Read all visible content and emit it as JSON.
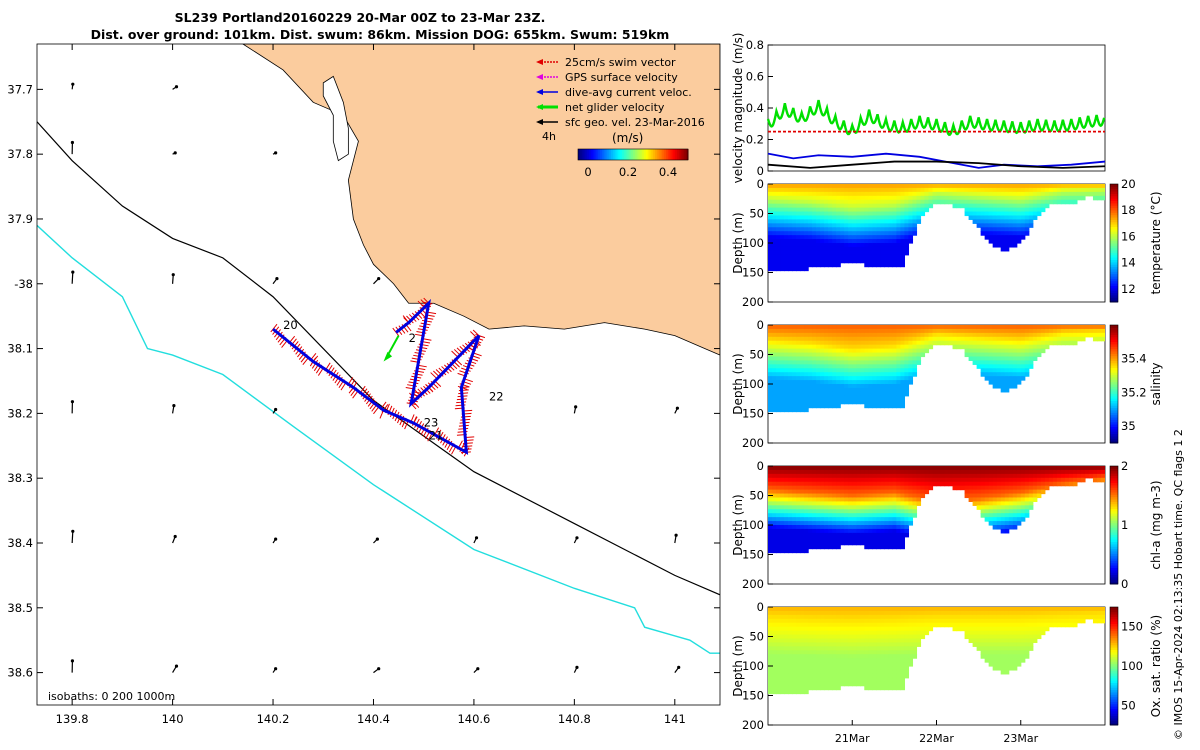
{
  "title_line1": "SL239 Portland20160229 20-Mar 00Z to 23-Mar 23Z.",
  "title_line2": "Dist. over ground: 101km. Dist. swum: 86km. Mission DOG: 655km. Swum: 519km",
  "copyright": "© IMOS 15-Apr-2024 02:13:35 Hobart time. QC flags 1  2",
  "chart_data": [
    {
      "type": "map",
      "xlim": [
        139.73,
        141.09
      ],
      "ylim": [
        38.65,
        37.63
      ],
      "x_ticks": [
        139.8,
        140,
        140.2,
        140.4,
        140.6,
        140.8,
        141
      ],
      "x_tick_labels": [
        "139.8",
        "140",
        "140.2",
        "140.4",
        "140.6",
        "140.8",
        "141"
      ],
      "y_ticks": [
        37.7,
        37.8,
        37.9,
        38.0,
        38.1,
        38.2,
        38.3,
        38.4,
        38.5,
        38.6
      ],
      "y_tick_labels": [
        "37.7",
        "37.8",
        "37.9",
        "-38",
        "38.1",
        "38.2",
        "38.3",
        "38.4",
        "38.5",
        "38.6"
      ],
      "legend": [
        {
          "label": "25cm/s swim vector",
          "color": "#e00000"
        },
        {
          "label": "GPS surface velocity",
          "color": "#e000e0"
        },
        {
          "label": "dive-avg current veloc.",
          "color": "#0000e0"
        },
        {
          "label": "net glider velocity",
          "color": "#00e000"
        },
        {
          "label": "sfc geo. vel. 23-Mar-2016",
          "color": "#000000"
        }
      ],
      "colorbar": {
        "label": "(m/s)",
        "prefix": "4h",
        "ticks": [
          "0",
          "0.2",
          "0.4"
        ],
        "range": [
          -0.05,
          0.5
        ]
      },
      "isobath_label": "isobaths: 0   200  1000m",
      "track_day_labels": [
        {
          "text": "20",
          "lon": 140.22,
          "lat": 38.07
        },
        {
          "text": "2",
          "lon": 140.47,
          "lat": 38.09
        },
        {
          "text": "22",
          "lon": 140.63,
          "lat": 38.18
        },
        {
          "text": "23",
          "lon": 140.5,
          "lat": 38.22
        },
        {
          "text": "21",
          "lon": 140.51,
          "lat": 38.24
        }
      ],
      "glider_track": [
        [
          140.2,
          38.07
        ],
        [
          140.28,
          38.12
        ],
        [
          140.36,
          38.16
        ],
        [
          140.42,
          38.195
        ],
        [
          140.48,
          38.215
        ],
        [
          140.585,
          38.26
        ],
        [
          140.575,
          38.16
        ],
        [
          140.61,
          38.08
        ],
        [
          140.56,
          38.12
        ],
        [
          140.51,
          38.16
        ],
        [
          140.475,
          38.185
        ],
        [
          140.51,
          38.03
        ],
        [
          140.47,
          38.06
        ],
        [
          140.445,
          38.075
        ]
      ],
      "coast_outline": [
        [
          140.14,
          37.63
        ],
        [
          140.22,
          37.67
        ],
        [
          140.28,
          37.72
        ],
        [
          140.34,
          37.74
        ],
        [
          140.37,
          37.78
        ],
        [
          140.35,
          37.84
        ],
        [
          140.36,
          37.9
        ],
        [
          140.38,
          37.94
        ],
        [
          140.4,
          37.97
        ],
        [
          140.44,
          38.0
        ],
        [
          140.47,
          38.03
        ],
        [
          140.52,
          38.03
        ],
        [
          140.58,
          38.05
        ],
        [
          140.63,
          38.07
        ],
        [
          140.7,
          38.065
        ],
        [
          140.78,
          38.07
        ],
        [
          140.86,
          38.06
        ],
        [
          140.94,
          38.07
        ],
        [
          141.0,
          38.08
        ],
        [
          141.06,
          38.1
        ],
        [
          141.09,
          38.11
        ]
      ],
      "island": [
        [
          140.3,
          37.69
        ],
        [
          140.32,
          37.68
        ],
        [
          140.34,
          37.72
        ],
        [
          140.35,
          37.76
        ],
        [
          140.35,
          37.8
        ],
        [
          140.33,
          37.81
        ],
        [
          140.32,
          37.78
        ],
        [
          140.32,
          37.74
        ],
        [
          140.3,
          37.71
        ]
      ],
      "isobath_200": [
        [
          139.73,
          37.75
        ],
        [
          139.8,
          37.81
        ],
        [
          139.9,
          37.88
        ],
        [
          140.0,
          37.93
        ],
        [
          140.1,
          37.96
        ],
        [
          140.2,
          38.02
        ],
        [
          140.4,
          38.18
        ],
        [
          140.6,
          38.29
        ],
        [
          140.8,
          38.37
        ],
        [
          141.0,
          38.45
        ],
        [
          141.09,
          38.48
        ]
      ],
      "isobath_1000": [
        [
          139.73,
          37.91
        ],
        [
          139.8,
          37.96
        ],
        [
          139.9,
          38.02
        ],
        [
          139.95,
          38.1
        ],
        [
          140.0,
          38.11
        ],
        [
          140.1,
          38.14
        ],
        [
          140.24,
          38.22
        ],
        [
          140.4,
          38.31
        ],
        [
          140.6,
          38.41
        ],
        [
          140.8,
          38.47
        ],
        [
          140.92,
          38.5
        ],
        [
          140.94,
          38.53
        ],
        [
          141.03,
          38.55
        ],
        [
          141.07,
          38.57
        ],
        [
          141.09,
          38.57
        ]
      ],
      "geo_vectors": [
        {
          "lon": 139.8,
          "lat": 37.7,
          "u": 0.05,
          "v": 0.4
        },
        {
          "lon": 140.0,
          "lat": 37.7,
          "u": 0.3,
          "v": 0.2
        },
        {
          "lon": 139.8,
          "lat": 37.8,
          "u": 0.02,
          "v": 0.9
        },
        {
          "lon": 140.0,
          "lat": 37.8,
          "u": 0.2,
          "v": 0.1
        },
        {
          "lon": 140.2,
          "lat": 37.8,
          "u": 0.2,
          "v": 0.1
        },
        {
          "lon": 139.8,
          "lat": 38.0,
          "u": 0.05,
          "v": 0.9
        },
        {
          "lon": 140.0,
          "lat": 38.0,
          "u": 0.05,
          "v": 0.7
        },
        {
          "lon": 140.2,
          "lat": 38.0,
          "u": 0.3,
          "v": 0.4
        },
        {
          "lon": 140.4,
          "lat": 38.0,
          "u": 0.4,
          "v": 0.4
        },
        {
          "lon": 139.8,
          "lat": 38.2,
          "u": 0.02,
          "v": 0.9
        },
        {
          "lon": 140.0,
          "lat": 38.2,
          "u": 0.1,
          "v": 0.6
        },
        {
          "lon": 140.2,
          "lat": 38.2,
          "u": 0.2,
          "v": 0.3
        },
        {
          "lon": 140.8,
          "lat": 38.2,
          "u": 0.1,
          "v": 0.5
        },
        {
          "lon": 141.0,
          "lat": 38.2,
          "u": 0.2,
          "v": 0.4
        },
        {
          "lon": 139.8,
          "lat": 38.4,
          "u": 0.05,
          "v": 0.9
        },
        {
          "lon": 140.0,
          "lat": 38.4,
          "u": 0.2,
          "v": 0.5
        },
        {
          "lon": 140.2,
          "lat": 38.4,
          "u": 0.2,
          "v": 0.3
        },
        {
          "lon": 140.4,
          "lat": 38.4,
          "u": 0.3,
          "v": 0.3
        },
        {
          "lon": 140.6,
          "lat": 38.4,
          "u": 0.2,
          "v": 0.4
        },
        {
          "lon": 140.8,
          "lat": 38.4,
          "u": 0.2,
          "v": 0.4
        },
        {
          "lon": 141.0,
          "lat": 38.4,
          "u": 0.1,
          "v": 0.6
        },
        {
          "lon": 139.8,
          "lat": 38.6,
          "u": 0.02,
          "v": 0.9
        },
        {
          "lon": 140.0,
          "lat": 38.6,
          "u": 0.3,
          "v": 0.5
        },
        {
          "lon": 140.2,
          "lat": 38.6,
          "u": 0.2,
          "v": 0.3
        },
        {
          "lon": 140.4,
          "lat": 38.6,
          "u": 0.4,
          "v": 0.3
        },
        {
          "lon": 140.6,
          "lat": 38.6,
          "u": 0.3,
          "v": 0.3
        },
        {
          "lon": 140.8,
          "lat": 38.6,
          "u": 0.2,
          "v": 0.4
        },
        {
          "lon": 141.0,
          "lat": 38.6,
          "u": 0.3,
          "v": 0.4
        }
      ]
    },
    {
      "type": "line",
      "ylabel": "velocity magnitude (m/s)",
      "ylim": [
        0,
        0.8
      ],
      "y_ticks": [
        0,
        0.2,
        0.4,
        0.6,
        0.8
      ],
      "y_tick_labels": [
        "0",
        "0.2",
        "0.4",
        "0.6",
        "0.8"
      ],
      "xlim": [
        20.0,
        24.0
      ],
      "series": [
        {
          "color": "#00e000",
          "style": "net glider velocity",
          "x": [
            20.0,
            20.2,
            20.4,
            20.6,
            20.8,
            21.0,
            21.2,
            21.4,
            21.6,
            21.8,
            22.0,
            22.2,
            22.4,
            22.6,
            22.8,
            23.0,
            23.2,
            23.4,
            23.6,
            23.8,
            24.0
          ],
          "y": [
            0.28,
            0.38,
            0.32,
            0.4,
            0.3,
            0.24,
            0.34,
            0.28,
            0.26,
            0.3,
            0.28,
            0.24,
            0.3,
            0.28,
            0.27,
            0.26,
            0.28,
            0.27,
            0.28,
            0.3,
            0.31
          ]
        },
        {
          "color": "#e00000",
          "style": "25cm/s swim vector",
          "x": [
            20.0,
            24.0
          ],
          "y": [
            0.25,
            0.25
          ]
        },
        {
          "color": "#0000e0",
          "style": "dive-avg current",
          "x": [
            20.0,
            20.3,
            20.6,
            21.0,
            21.4,
            21.8,
            22.2,
            22.5,
            22.8,
            23.2,
            23.6,
            24.0
          ],
          "y": [
            0.11,
            0.08,
            0.1,
            0.09,
            0.11,
            0.09,
            0.05,
            0.02,
            0.04,
            0.03,
            0.04,
            0.06
          ]
        },
        {
          "color": "#000000",
          "style": "sfc geo",
          "x": [
            20.0,
            20.5,
            21.0,
            21.5,
            22.0,
            22.5,
            23.0,
            23.5,
            24.0
          ],
          "y": [
            0.04,
            0.02,
            0.04,
            0.06,
            0.06,
            0.05,
            0.03,
            0.02,
            0.03
          ]
        }
      ]
    },
    {
      "type": "heatmap",
      "ylabel": "Depth (m)",
      "cbar_label": "temperature (°C)",
      "ylim": [
        0,
        200
      ],
      "y_ticks": [
        0,
        50,
        100,
        150,
        200
      ],
      "y_tick_labels": [
        "0",
        "50",
        "100",
        "150",
        "200"
      ],
      "clim": [
        11,
        20
      ],
      "cbar_ticks": [
        12,
        14,
        16,
        18,
        20
      ],
      "cbar_tick_labels": [
        "12",
        "14",
        "16",
        "18",
        "20"
      ],
      "bottom_depth": [
        [
          20.0,
          150
        ],
        [
          20.3,
          148
        ],
        [
          20.6,
          140
        ],
        [
          21.0,
          135
        ],
        [
          21.4,
          140
        ],
        [
          21.6,
          138
        ],
        [
          21.8,
          60
        ],
        [
          22.0,
          30
        ],
        [
          22.3,
          40
        ],
        [
          22.6,
          95
        ],
        [
          22.8,
          115
        ],
        [
          23.0,
          100
        ],
        [
          23.2,
          55
        ],
        [
          23.4,
          30
        ],
        [
          23.6,
          35
        ],
        [
          23.8,
          20
        ],
        [
          24.0,
          30
        ]
      ],
      "mixed_layer_depth": [
        [
          20.0,
          25
        ],
        [
          20.5,
          30
        ],
        [
          21.0,
          40
        ],
        [
          21.5,
          35
        ],
        [
          22.0,
          15
        ],
        [
          22.5,
          20
        ],
        [
          23.0,
          25
        ],
        [
          23.5,
          12
        ],
        [
          24.0,
          10
        ]
      ],
      "surface_value": 17.5,
      "deep_value": 12.0
    },
    {
      "type": "heatmap",
      "ylabel": "Depth (m)",
      "cbar_label": "salinity",
      "ylim": [
        0,
        200
      ],
      "y_ticks": [
        0,
        50,
        100,
        150,
        200
      ],
      "y_tick_labels": [
        "0",
        "50",
        "100",
        "150",
        "200"
      ],
      "clim": [
        34.9,
        35.6
      ],
      "cbar_ticks": [
        35,
        35.2,
        35.4
      ],
      "cbar_tick_labels": [
        "35",
        "35.2",
        "35.4"
      ],
      "bottom_depth": [
        [
          20.0,
          150
        ],
        [
          20.3,
          148
        ],
        [
          20.6,
          140
        ],
        [
          21.0,
          135
        ],
        [
          21.4,
          140
        ],
        [
          21.6,
          138
        ],
        [
          21.8,
          60
        ],
        [
          22.0,
          30
        ],
        [
          22.3,
          40
        ],
        [
          22.6,
          95
        ],
        [
          22.8,
          115
        ],
        [
          23.0,
          100
        ],
        [
          23.2,
          55
        ],
        [
          23.4,
          30
        ],
        [
          23.6,
          35
        ],
        [
          23.8,
          20
        ],
        [
          24.0,
          30
        ]
      ],
      "mixed_layer_depth": [
        [
          20.0,
          25
        ],
        [
          20.5,
          30
        ],
        [
          21.0,
          40
        ],
        [
          21.5,
          35
        ],
        [
          22.0,
          15
        ],
        [
          22.5,
          20
        ],
        [
          23.0,
          25
        ],
        [
          23.5,
          12
        ],
        [
          24.0,
          10
        ]
      ],
      "surface_value": 35.45,
      "deep_value": 35.1
    },
    {
      "type": "heatmap",
      "ylabel": "Depth (m)",
      "cbar_label": "chl-a (mg m-3)",
      "ylim": [
        0,
        200
      ],
      "y_ticks": [
        0,
        50,
        100,
        150,
        200
      ],
      "y_tick_labels": [
        "0",
        "50",
        "100",
        "150",
        "200"
      ],
      "clim": [
        0,
        2
      ],
      "cbar_ticks": [
        0,
        1,
        2
      ],
      "cbar_tick_labels": [
        "0",
        "1",
        "2"
      ],
      "bottom_depth": [
        [
          20.0,
          150
        ],
        [
          20.3,
          148
        ],
        [
          20.6,
          140
        ],
        [
          21.0,
          135
        ],
        [
          21.4,
          140
        ],
        [
          21.6,
          138
        ],
        [
          21.8,
          60
        ],
        [
          22.0,
          30
        ],
        [
          22.3,
          40
        ],
        [
          22.6,
          95
        ],
        [
          22.8,
          115
        ],
        [
          23.0,
          100
        ],
        [
          23.2,
          55
        ],
        [
          23.4,
          30
        ],
        [
          23.6,
          35
        ],
        [
          23.8,
          20
        ],
        [
          24.0,
          30
        ]
      ],
      "mixed_layer_depth": [
        [
          20.0,
          40
        ],
        [
          20.5,
          45
        ],
        [
          21.0,
          50
        ],
        [
          21.5,
          45
        ],
        [
          22.0,
          60
        ],
        [
          22.5,
          55
        ],
        [
          23.0,
          45
        ],
        [
          23.5,
          30
        ],
        [
          24.0,
          20
        ]
      ],
      "surface_value": 2.0,
      "deep_value": 0.2
    },
    {
      "type": "heatmap",
      "ylabel": "Depth (m)",
      "cbar_label": "Ox. sat. ratio (%)",
      "ylim": [
        0,
        200
      ],
      "y_ticks": [
        0,
        50,
        100,
        150,
        200
      ],
      "y_tick_labels": [
        "0",
        "50",
        "100",
        "150",
        "200"
      ],
      "clim": [
        25,
        175
      ],
      "cbar_ticks": [
        50,
        100,
        150
      ],
      "cbar_tick_labels": [
        "50",
        "100",
        "150"
      ],
      "x_ticks": [
        21.0,
        22.0,
        23.0
      ],
      "x_tick_labels": [
        "21Mar",
        "22Mar",
        "23Mar"
      ],
      "bottom_depth": [
        [
          20.0,
          150
        ],
        [
          20.3,
          148
        ],
        [
          20.6,
          140
        ],
        [
          21.0,
          135
        ],
        [
          21.4,
          140
        ],
        [
          21.6,
          138
        ],
        [
          21.8,
          60
        ],
        [
          22.0,
          30
        ],
        [
          22.3,
          40
        ],
        [
          22.6,
          95
        ],
        [
          22.8,
          115
        ],
        [
          23.0,
          100
        ],
        [
          23.2,
          55
        ],
        [
          23.4,
          30
        ],
        [
          23.6,
          35
        ],
        [
          23.8,
          20
        ],
        [
          24.0,
          30
        ]
      ],
      "mixed_layer_depth": [
        [
          20.0,
          15
        ],
        [
          20.5,
          18
        ],
        [
          21.0,
          20
        ],
        [
          21.5,
          18
        ],
        [
          22.0,
          15
        ],
        [
          22.5,
          15
        ],
        [
          23.0,
          15
        ],
        [
          23.5,
          12
        ],
        [
          24.0,
          10
        ]
      ],
      "surface_value": 130,
      "deep_value": 105
    }
  ]
}
